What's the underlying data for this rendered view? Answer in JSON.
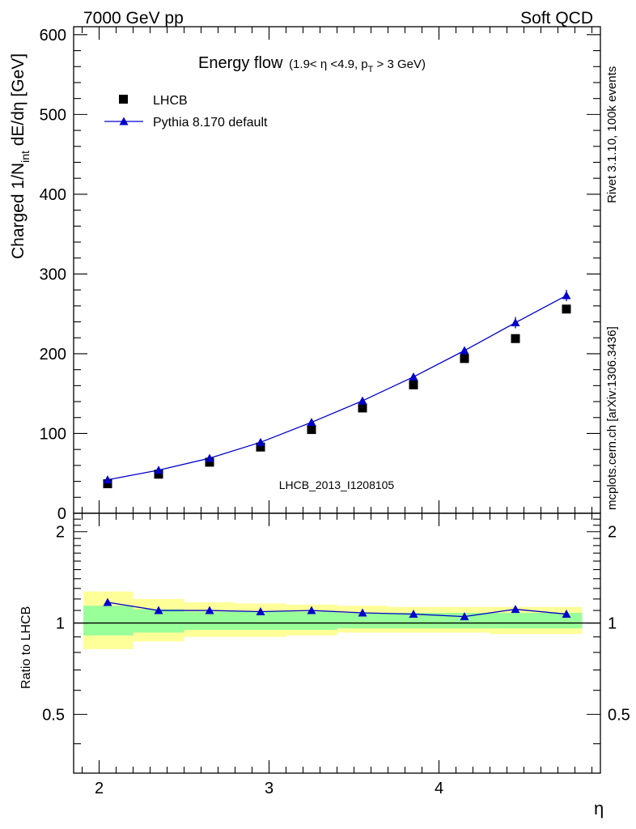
{
  "header": {
    "left": "7000 GeV pp",
    "right": "Soft QCD"
  },
  "side_labels": {
    "rivet": "Rivet 3.1.10,  100k events",
    "mcplots": "mcplots.cern.ch [arXiv:1306.3436]"
  },
  "chart_data": [
    {
      "type": "scatter",
      "panel": "main",
      "title": "Energy flow",
      "subtitle_parts": [
        "(1.9< η <4.9, p",
        "T",
        " > 3 GeV)"
      ],
      "ylabel_parts": [
        "Charged 1/N",
        "int",
        " dE/dη [GeV]"
      ],
      "watermark": "LHCB_2013_I1208105",
      "xlim": [
        1.85,
        4.95
      ],
      "ylim": [
        0,
        610
      ],
      "y_ticks": [
        0,
        100,
        200,
        300,
        400,
        500,
        600
      ],
      "grid": false,
      "legend_position": "top-left",
      "x": [
        2.05,
        2.35,
        2.65,
        2.95,
        3.25,
        3.55,
        3.85,
        4.15,
        4.45,
        4.75
      ],
      "series": [
        {
          "name": "LHCB",
          "marker": "square",
          "color": "#000000",
          "values": [
            37,
            49,
            64,
            83,
            105,
            132,
            161,
            194,
            219,
            256
          ]
        },
        {
          "name": "Pythia 8.170 default",
          "marker": "triangle",
          "line": true,
          "color": "#0000cc",
          "values": [
            42,
            54,
            69,
            89,
            114,
            141,
            171,
            204,
            239,
            273
          ]
        }
      ]
    },
    {
      "type": "line",
      "panel": "ratio",
      "ylabel": "Ratio to LHCB",
      "xlabel": "η",
      "xlim": [
        1.85,
        4.95
      ],
      "ylim": [
        0.32,
        2.3
      ],
      "y_ticks": [
        0.5,
        1,
        2
      ],
      "x_ticks": [
        2,
        3,
        4
      ],
      "reference_line": 1,
      "band_edges": [
        1.85,
        2.2,
        2.5,
        2.8,
        3.1,
        3.4,
        3.7,
        4.0,
        4.3,
        4.6,
        4.9
      ],
      "bands": {
        "yellow": {
          "color": "#ffff99",
          "low": [
            0.82,
            0.87,
            0.9,
            0.9,
            0.91,
            0.93,
            0.93,
            0.93,
            0.92,
            0.92
          ],
          "high": [
            1.27,
            1.2,
            1.17,
            1.16,
            1.15,
            1.14,
            1.13,
            1.13,
            1.13,
            1.13
          ]
        },
        "green": {
          "color": "#99ff99",
          "low": [
            0.91,
            0.93,
            0.95,
            0.95,
            0.95,
            0.96,
            0.96,
            0.96,
            0.96,
            0.96
          ],
          "high": [
            1.14,
            1.11,
            1.09,
            1.09,
            1.09,
            1.08,
            1.08,
            1.08,
            1.08,
            1.08
          ]
        }
      },
      "x": [
        2.05,
        2.35,
        2.65,
        2.95,
        3.25,
        3.55,
        3.85,
        4.15,
        4.45,
        4.75
      ],
      "series": [
        {
          "name": "Pythia 8.170 default",
          "color": "#0000cc",
          "values": [
            1.17,
            1.1,
            1.1,
            1.09,
            1.1,
            1.08,
            1.07,
            1.05,
            1.11,
            1.07
          ]
        }
      ]
    }
  ]
}
